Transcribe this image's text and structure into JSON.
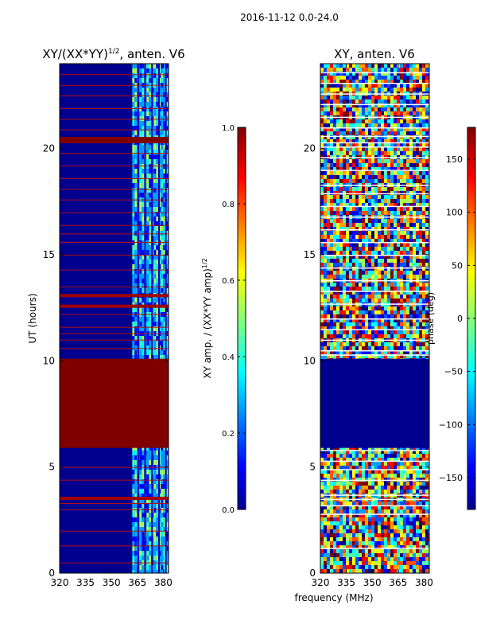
{
  "figure": {
    "suptitle": "2016-11-12 0.0-24.0"
  },
  "chart_data": [
    {
      "type": "heatmap",
      "title_prefix": "XY/(XX*YY)",
      "title_exponent": "1/2",
      "title_suffix": ", anten. V6",
      "xlabel": "",
      "ylabel": "UT (hours)",
      "x_ticks": [
        "320",
        "335",
        "350",
        "365",
        "380"
      ],
      "x_tick_values": [
        320,
        335,
        350,
        365,
        380
      ],
      "xlim": [
        320,
        383
      ],
      "y_ticks": [
        "0",
        "5",
        "10",
        "15",
        "20"
      ],
      "y_tick_values": [
        0,
        5,
        10,
        15,
        20
      ],
      "ylim": [
        0,
        24
      ],
      "colorbar": {
        "label_prefix": "XY amp. / (XX*YY amp)",
        "label_exponent": "1/2",
        "ticks": [
          "0.0",
          "0.2",
          "0.4",
          "0.6",
          "0.8",
          "1.0"
        ],
        "tick_values": [
          0.0,
          0.2,
          0.4,
          0.6,
          0.8,
          1.0
        ],
        "range": [
          0,
          1
        ]
      },
      "saturated_band_hours": [
        5.9,
        10.1
      ],
      "bright_band_mhz": [
        362,
        383
      ],
      "colormap": "jet"
    },
    {
      "type": "heatmap",
      "title": "XY, anten. V6",
      "xlabel": "frequency (MHz)",
      "ylabel": "",
      "x_ticks": [
        "320",
        "335",
        "350",
        "365",
        "380"
      ],
      "x_tick_values": [
        320,
        335,
        350,
        365,
        380
      ],
      "xlim": [
        320,
        383
      ],
      "y_ticks": [
        "0",
        "5",
        "10",
        "15",
        "20"
      ],
      "y_tick_values": [
        0,
        5,
        10,
        15,
        20
      ],
      "ylim": [
        0,
        24
      ],
      "colorbar": {
        "label": "phase (deg)",
        "ticks": [
          "150",
          "100",
          "50",
          "0",
          "−50",
          "−100",
          "−150"
        ],
        "tick_values": [
          150,
          100,
          50,
          0,
          -50,
          -100,
          -150
        ],
        "range": [
          -180,
          180
        ]
      },
      "flagged_band_hours": [
        5.9,
        10.1
      ],
      "colormap": "jet"
    }
  ]
}
